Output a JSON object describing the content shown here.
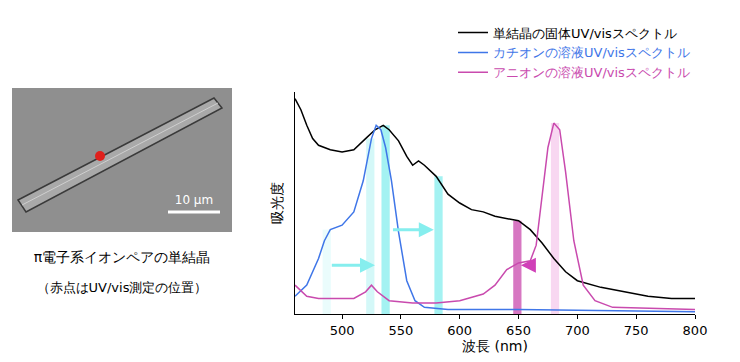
{
  "chart_data": {
    "type": "line",
    "xlabel": "波長 (nm)",
    "ylabel": "吸光度",
    "xlim": [
      460,
      800
    ],
    "xticks": [
      500,
      550,
      600,
      650,
      700,
      750,
      800
    ],
    "ylim": [
      0,
      1
    ],
    "yticks": [],
    "tick_labels": "x",
    "grid": false,
    "legend": "top-right",
    "series": [
      {
        "name": "単結晶の固体UV/visスペクトル",
        "color": "#000000",
        "x": [
          460,
          465,
          470,
          475,
          480,
          490,
          500,
          510,
          520,
          528,
          535,
          540,
          548,
          555,
          560,
          565,
          570,
          580,
          590,
          600,
          610,
          620,
          630,
          640,
          650,
          660,
          670,
          680,
          690,
          700,
          720,
          740,
          760,
          780,
          800
        ],
        "values": [
          0.97,
          0.92,
          0.85,
          0.79,
          0.76,
          0.74,
          0.73,
          0.74,
          0.79,
          0.83,
          0.85,
          0.83,
          0.78,
          0.71,
          0.67,
          0.69,
          0.67,
          0.62,
          0.54,
          0.5,
          0.47,
          0.46,
          0.44,
          0.43,
          0.42,
          0.38,
          0.32,
          0.25,
          0.19,
          0.15,
          0.12,
          0.1,
          0.08,
          0.07,
          0.07
        ]
      },
      {
        "name": "カチオンの溶液UV/visスペクトル",
        "color": "#3f76e8",
        "x": [
          460,
          470,
          480,
          485,
          490,
          500,
          510,
          518,
          525,
          529,
          533,
          537,
          542,
          548,
          555,
          562,
          570,
          590,
          650,
          800
        ],
        "values": [
          0.08,
          0.13,
          0.25,
          0.33,
          0.38,
          0.4,
          0.46,
          0.6,
          0.79,
          0.85,
          0.83,
          0.75,
          0.6,
          0.37,
          0.15,
          0.06,
          0.03,
          0.02,
          0.02,
          0.01
        ]
      },
      {
        "name": "アニオンの溶液UV/visスペクトル",
        "color": "#c94aae",
        "x": [
          460,
          470,
          480,
          490,
          500,
          510,
          520,
          525,
          530,
          540,
          560,
          580,
          600,
          620,
          630,
          640,
          650,
          660,
          665,
          670,
          675,
          680,
          685,
          690,
          697,
          705,
          715,
          730,
          800
        ],
        "values": [
          0.13,
          0.08,
          0.07,
          0.07,
          0.07,
          0.07,
          0.1,
          0.13,
          0.1,
          0.06,
          0.05,
          0.05,
          0.06,
          0.09,
          0.13,
          0.2,
          0.23,
          0.24,
          0.31,
          0.52,
          0.75,
          0.86,
          0.83,
          0.64,
          0.33,
          0.13,
          0.06,
          0.03,
          0.02
        ]
      }
    ],
    "bands": [
      {
        "x": 487,
        "top": 0.38,
        "color": "#e3fbfb"
      },
      {
        "x": 524,
        "top": 0.79,
        "color": "#c6f6f6"
      },
      {
        "x": 537,
        "top": 0.85,
        "color": "#86eeee"
      },
      {
        "x": 582,
        "top": 0.62,
        "color": "#86eeee"
      },
      {
        "x": 649,
        "top": 0.42,
        "color": "#c94aae"
      },
      {
        "x": 681,
        "top": 0.86,
        "color": "#f6c9ec"
      }
    ],
    "arrows": [
      {
        "from": 490,
        "to": 528,
        "y": 0.22,
        "color": "#86eeee"
      },
      {
        "from": 542,
        "to": 578,
        "y": 0.38,
        "color": "#86eeee"
      },
      {
        "from": 664,
        "to": 652,
        "y": 0.22,
        "color": "#d040b8"
      }
    ]
  },
  "image": {
    "scale_label": "10 µm",
    "caption": "π電子系イオンペアの単結晶",
    "note": "（赤点はUV/vis測定の位置）"
  }
}
